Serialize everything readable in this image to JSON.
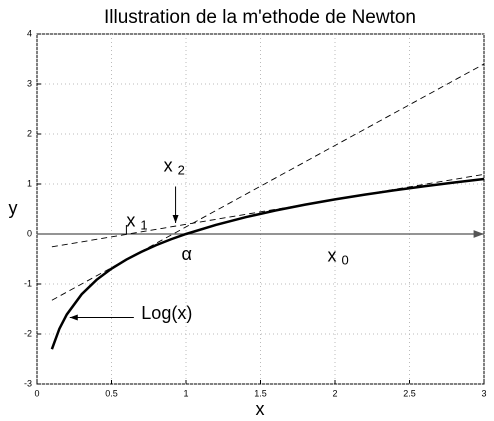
{
  "chart_data": {
    "type": "line",
    "title": "Illustration de la m'ethode de Newton",
    "xlabel": "x",
    "ylabel": "y",
    "xlim": [
      0,
      3
    ],
    "ylim": [
      -3,
      4
    ],
    "xticks": [
      0,
      0.5,
      1,
      1.5,
      2,
      2.5,
      3
    ],
    "yticks": [
      -3,
      -2,
      -1,
      0,
      1,
      2,
      3,
      4
    ],
    "grid": true,
    "series": [
      {
        "color": "#000000",
        "style": "thick",
        "x": [
          0.1,
          0.15,
          0.2,
          0.3,
          0.4,
          0.5,
          0.6,
          0.7,
          0.8,
          0.9,
          1,
          1.2,
          1.4,
          1.6,
          1.8,
          2,
          2.2,
          2.4,
          2.6,
          2.8,
          3
        ],
        "values": [
          -2.303,
          -1.897,
          -1.609,
          -1.204,
          -0.916,
          -0.693,
          -0.511,
          -0.357,
          -0.223,
          -0.105,
          0,
          0.182,
          0.336,
          0.47,
          0.588,
          0.693,
          0.788,
          0.875,
          0.956,
          1.03,
          1.099
        ]
      },
      {
        "color": "#000000",
        "style": "dashed",
        "x": [
          0.1,
          3
        ],
        "values": [
          -0.257,
          1.193
        ]
      },
      {
        "color": "#000000",
        "style": "dashed",
        "x": [
          0.1,
          3
        ],
        "values": [
          -1.325,
          3.4
        ]
      }
    ],
    "annotations": [
      {
        "text": "x",
        "subscript": "1"
      },
      {
        "text": "x",
        "subscript": "2"
      },
      {
        "text": "α"
      },
      {
        "text": "x",
        "subscript": "0"
      },
      {
        "text": "Log(x)"
      }
    ]
  }
}
